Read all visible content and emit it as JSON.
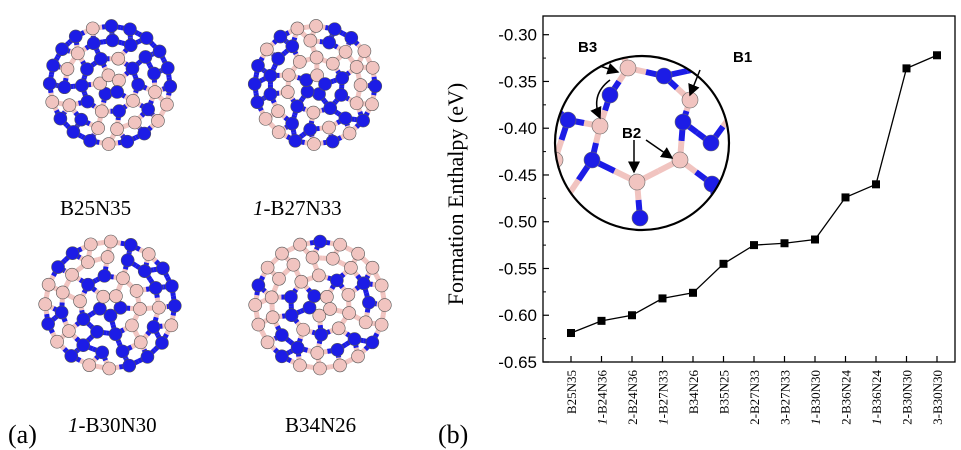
{
  "panel_a": {
    "letter": "(a)",
    "molecules": [
      {
        "prefix": "",
        "formula": "B25N35"
      },
      {
        "prefix": "1",
        "formula": "-B27N33"
      },
      {
        "prefix": "1",
        "formula": "-B30N30"
      },
      {
        "prefix": "",
        "formula": "B34N26"
      }
    ]
  },
  "panel_b": {
    "letter": "(b)",
    "inset_labels": {
      "b1": "B1",
      "b2": "B2",
      "b3": "B3"
    }
  },
  "colors": {
    "boron": "#f1c4c0",
    "nitrogen": "#1c1ce6",
    "line": "#000000"
  },
  "chart_data": {
    "type": "line",
    "title": "",
    "xlabel": "",
    "ylabel": "Formation Enthalpy (eV)",
    "ylim": [
      -0.65,
      -0.28
    ],
    "yticks": [
      -0.3,
      -0.35,
      -0.4,
      -0.45,
      -0.5,
      -0.55,
      -0.6,
      -0.65
    ],
    "ytick_labels": [
      "-0.30",
      "-0.35",
      "-0.40",
      "-0.45",
      "-0.50",
      "-0.55",
      "-0.60",
      "-0.65"
    ],
    "categories": [
      {
        "prefix": "",
        "rest": "B25N35"
      },
      {
        "prefix": "1",
        "rest": "-B24N36"
      },
      {
        "prefix": "",
        "rest": "2-B24N36"
      },
      {
        "prefix": "1",
        "rest": "-B27N33"
      },
      {
        "prefix": "",
        "rest": "B34N26"
      },
      {
        "prefix": "",
        "rest": "B35N25"
      },
      {
        "prefix": "",
        "rest": "2-B27N33"
      },
      {
        "prefix": "",
        "rest": "3-B27N33"
      },
      {
        "prefix": "1",
        "rest": "-B30N30"
      },
      {
        "prefix": "",
        "rest": "2-B36N24"
      },
      {
        "prefix": "1",
        "rest": "-B36N24"
      },
      {
        "prefix": "",
        "rest": "2-B30N30"
      },
      {
        "prefix": "",
        "rest": "3-B30N30"
      }
    ],
    "series": [
      {
        "values": [
          -0.619,
          -0.606,
          -0.6,
          -0.582,
          -0.576,
          -0.545,
          -0.525,
          -0.523,
          -0.519,
          -0.474,
          -0.46,
          -0.336,
          -0.322
        ]
      }
    ],
    "marker": "square",
    "grid": false
  }
}
